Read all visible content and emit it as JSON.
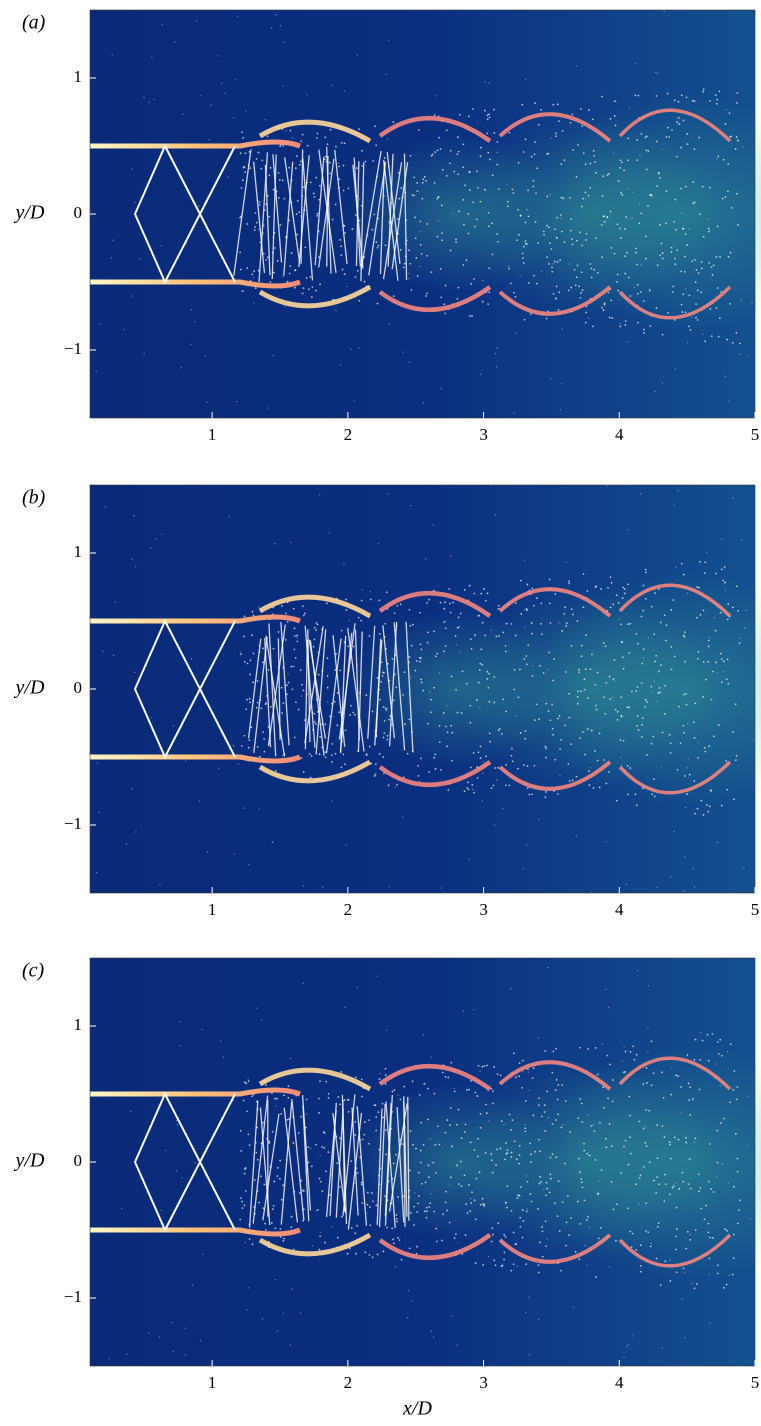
{
  "chart_data": [
    {
      "type": "field",
      "panel_label": "(a)",
      "ylabel": "y/D",
      "xlim": [
        0.1,
        5
      ],
      "ylim": [
        -1.5,
        1.5
      ],
      "xticks": [
        1,
        2,
        3,
        4,
        5
      ],
      "yticks": [
        1,
        0,
        {
          "value": -1,
          "label": "−1"
        }
      ]
    },
    {
      "type": "field",
      "panel_label": "(b)",
      "ylabel": "y/D",
      "xlim": [
        0.1,
        5
      ],
      "ylim": [
        -1.5,
        1.5
      ],
      "xticks": [
        1,
        2,
        3,
        4,
        5
      ],
      "yticks": [
        1,
        0,
        {
          "value": -1,
          "label": "−1"
        }
      ]
    },
    {
      "type": "field",
      "panel_label": "(c)",
      "ylabel": "y/D",
      "xlabel": "x/D",
      "xlim": [
        0.1,
        5
      ],
      "ylim": [
        -1.5,
        1.5
      ],
      "xticks": [
        1,
        2,
        3,
        4,
        5
      ],
      "yticks": [
        1,
        0,
        {
          "value": -1,
          "label": "−1"
        }
      ]
    }
  ]
}
